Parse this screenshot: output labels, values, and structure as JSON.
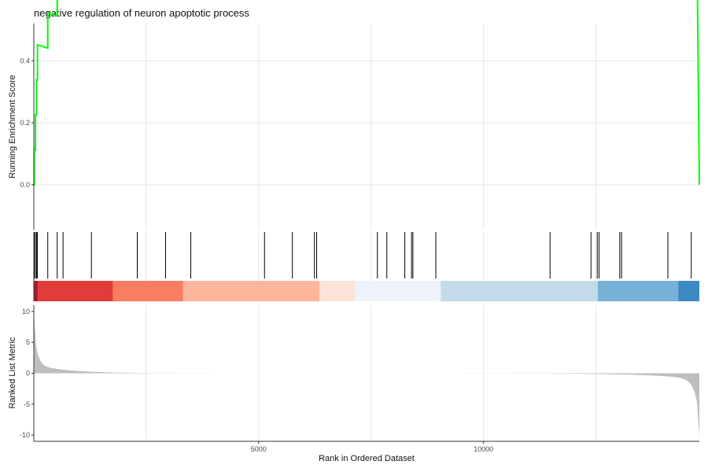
{
  "chart_data": {
    "type": "line",
    "title": "negative regulation of neuron apoptotic process",
    "x_axis": {
      "label": "Rank in Ordered Dataset",
      "range": [
        0,
        14800
      ],
      "ticks": [
        5000,
        10000
      ],
      "tick_labels": [
        "5000",
        "10000"
      ]
    },
    "panels": {
      "running_score": {
        "ylabel": "Running Enrichment Score",
        "ylim": [
          -0.145,
          0.52
        ],
        "yticks": [
          0.0,
          0.2,
          0.4
        ],
        "ytick_labels": [
          "0.0",
          "0.2",
          "0.4"
        ],
        "line_color": "#00ff00",
        "hits": [
          10,
          35,
          60,
          80,
          310,
          520,
          650,
          1280,
          2300,
          2930,
          3490,
          5130,
          5750,
          6240,
          6290,
          7640,
          7850,
          8250,
          8400,
          8430,
          8940,
          11480,
          12390,
          12530,
          12570,
          13030,
          13070,
          14100,
          14620
        ],
        "hit_start_score": 0.0,
        "hit_increment": 0.1137,
        "miss_decrement": 4.47e-05,
        "end_score": 0.0
      },
      "ranked_metric": {
        "ylabel": "Ranked List Metric",
        "ylim": [
          -11,
          11
        ],
        "yticks": [
          10,
          5,
          0,
          -5,
          -10
        ],
        "ytick_labels": [
          "10",
          "5",
          "0",
          "-5",
          "-10"
        ],
        "metric_max": 10,
        "metric_min": -10.5,
        "fill_color": "#bebebe"
      }
    },
    "color_bar": [
      {
        "x_start": 0,
        "x_end": 90,
        "color": "#b2182b"
      },
      {
        "x_start": 90,
        "x_end": 1760,
        "color": "#e03c39"
      },
      {
        "x_start": 1760,
        "x_end": 3320,
        "color": "#f97d60"
      },
      {
        "x_start": 3320,
        "x_end": 6350,
        "color": "#fdb59c"
      },
      {
        "x_start": 6350,
        "x_end": 7140,
        "color": "#fde3d8"
      },
      {
        "x_start": 7140,
        "x_end": 9050,
        "color": "#eef3fb"
      },
      {
        "x_start": 9050,
        "x_end": 12540,
        "color": "#c3dbe8"
      },
      {
        "x_start": 12540,
        "x_end": 14330,
        "color": "#76b2d8"
      },
      {
        "x_start": 14330,
        "x_end": 14800,
        "color": "#3d89c1"
      }
    ]
  }
}
